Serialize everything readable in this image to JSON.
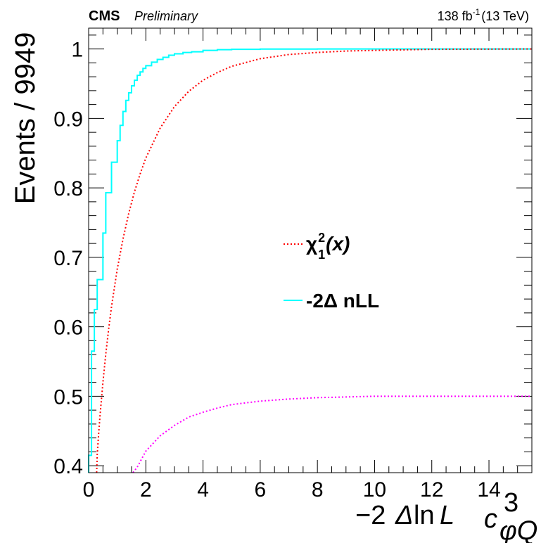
{
  "header": {
    "experiment": "CMS",
    "status": "Preliminary",
    "lumi": "138 fb",
    "lumi_exp": "-1",
    "energy": "(13 TeV)"
  },
  "chart_data": {
    "type": "line",
    "xlabel": {
      "prefix": "−2",
      "delta": "Δ",
      "ln": "ln",
      "L": "L",
      "param_base": "c",
      "param_sup": "3",
      "param_sub": "φQ"
    },
    "ylabel": "Events / 9949",
    "xlim": [
      0,
      15.5
    ],
    "ylim": [
      0.39,
      1.03
    ],
    "xticks": [
      0,
      2,
      4,
      6,
      8,
      10,
      12,
      14
    ],
    "yticks": [
      0.4,
      0.5,
      0.6,
      0.7,
      0.8,
      0.9,
      1
    ],
    "ytick_labels": [
      "0.4",
      "0.5",
      "0.6",
      "0.7",
      "0.8",
      "0.9",
      "1"
    ],
    "legend": {
      "position": "center-right",
      "entries": [
        {
          "label_base": "χ",
          "label_sup": "2",
          "label_sub": "1",
          "label_tail": "(x)",
          "color": "#ff0000",
          "style": "dotted"
        },
        {
          "label_base": "-2Δ nLL",
          "color": "#00ffff",
          "style": "solid"
        }
      ]
    },
    "series": [
      {
        "name": "-2Δ nLL",
        "color": "#00ffff",
        "style": "step",
        "x": [
          0.0,
          0.1,
          0.2,
          0.3,
          0.5,
          0.6,
          0.8,
          1.0,
          1.1,
          1.2,
          1.3,
          1.4,
          1.5,
          1.6,
          1.7,
          1.8,
          1.9,
          2.0,
          2.2,
          2.4,
          2.6,
          2.8,
          3.0,
          3.3,
          3.6,
          4.0,
          4.5,
          5.0,
          6.0,
          8.0,
          10.0,
          15.5
        ],
        "y": [
          0.415,
          0.565,
          0.625,
          0.668,
          0.735,
          0.793,
          0.837,
          0.868,
          0.89,
          0.91,
          0.926,
          0.937,
          0.947,
          0.955,
          0.962,
          0.967,
          0.972,
          0.976,
          0.981,
          0.985,
          0.988,
          0.991,
          0.993,
          0.995,
          0.996,
          0.998,
          0.999,
          0.9995,
          0.9999,
          1.0,
          1.0,
          1.0
        ]
      },
      {
        "name": "χ²₁(x)",
        "color": "#ff0000",
        "style": "dotted",
        "x": [
          0.28,
          0.3,
          0.35,
          0.4,
          0.5,
          0.6,
          0.7,
          0.8,
          1.0,
          1.2,
          1.4,
          1.6,
          1.8,
          2.0,
          2.5,
          3.0,
          3.5,
          4.0,
          4.5,
          5.0,
          6.0,
          7.0,
          8.0,
          9.0,
          10.0,
          12.0,
          15.5
        ],
        "y": [
          0.39,
          0.416,
          0.446,
          0.473,
          0.52,
          0.561,
          0.597,
          0.629,
          0.683,
          0.726,
          0.763,
          0.794,
          0.82,
          0.843,
          0.886,
          0.917,
          0.939,
          0.955,
          0.966,
          0.975,
          0.986,
          0.992,
          0.995,
          0.997,
          0.998,
          0.9995,
          1.0
        ]
      },
      {
        "name": "",
        "color": "#ff00ff",
        "style": "dotted",
        "x": [
          1.55,
          1.7,
          2.0,
          2.5,
          3.0,
          3.5,
          4.0,
          4.5,
          5.0,
          6.0,
          7.0,
          8.0,
          9.0,
          10.0,
          12.0,
          15.5
        ],
        "y": [
          0.39,
          0.398,
          0.421,
          0.443,
          0.458,
          0.47,
          0.477,
          0.483,
          0.488,
          0.493,
          0.496,
          0.498,
          0.499,
          0.5,
          0.5,
          0.5
        ]
      }
    ]
  }
}
